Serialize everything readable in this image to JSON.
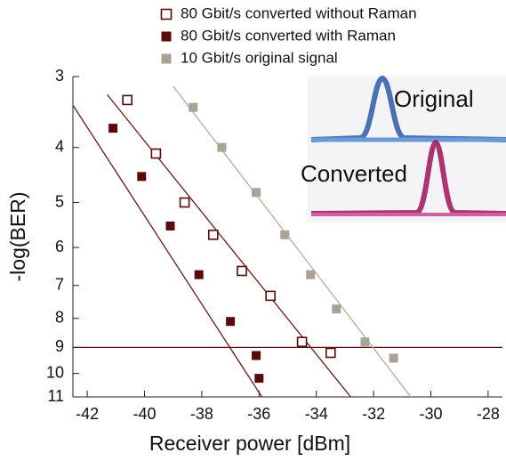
{
  "chart_data": {
    "type": "scatter",
    "xlabel": "Receiver power [dBm]",
    "ylabel": "-log(BER)",
    "xlim": [
      -42.5,
      -27.5
    ],
    "xticks": [
      -42,
      -40,
      -38,
      -36,
      -34,
      -32,
      -30,
      -28
    ],
    "ylim": [
      3,
      11
    ],
    "yticks": [
      3,
      4,
      5,
      6,
      7,
      8,
      9,
      10,
      11
    ],
    "yscale": "log",
    "y_reversed": true,
    "hline": 9,
    "hline_color": "#5a1010",
    "series": [
      {
        "name": "80 Gbit/s converted without Raman",
        "color": "#5a0a0a",
        "marker": "open",
        "x": [
          -40.6,
          -39.6,
          -38.6,
          -37.6,
          -36.6,
          -35.6,
          -34.5,
          -33.5
        ],
        "values": [
          3.3,
          4.1,
          5.0,
          5.7,
          6.6,
          7.3,
          8.8,
          9.2
        ]
      },
      {
        "name": "80 Gbit/s converted with Raman",
        "color": "#5a0a0a",
        "marker": "filled",
        "x": [
          -41.1,
          -40.1,
          -39.1,
          -38.1,
          -37.0,
          -36.1,
          -36.0
        ],
        "values": [
          3.7,
          4.5,
          5.5,
          6.7,
          8.1,
          9.3,
          10.2
        ]
      },
      {
        "name": "10 Gbit/s original signal",
        "color": "#aaa395",
        "marker": "filled",
        "x": [
          -38.3,
          -37.3,
          -36.1,
          -35.1,
          -34.2,
          -33.3,
          -32.3,
          -31.3
        ],
        "values": [
          3.4,
          4.0,
          4.8,
          5.7,
          6.7,
          7.7,
          8.8,
          9.4
        ]
      }
    ],
    "fits": [
      {
        "color": "#6b1a1a",
        "x": [
          -42.5,
          -35.9
        ],
        "values": [
          3.37,
          11
        ]
      },
      {
        "color": "#6b1a1a",
        "x": [
          -41.3,
          -32.8
        ],
        "values": [
          3.23,
          11
        ]
      },
      {
        "color": "#b3ad9f",
        "x": [
          -39.0,
          -30.7
        ],
        "values": [
          3.12,
          11
        ]
      }
    ]
  },
  "inset": {
    "label_top": "Original",
    "label_bottom": "Converted"
  }
}
